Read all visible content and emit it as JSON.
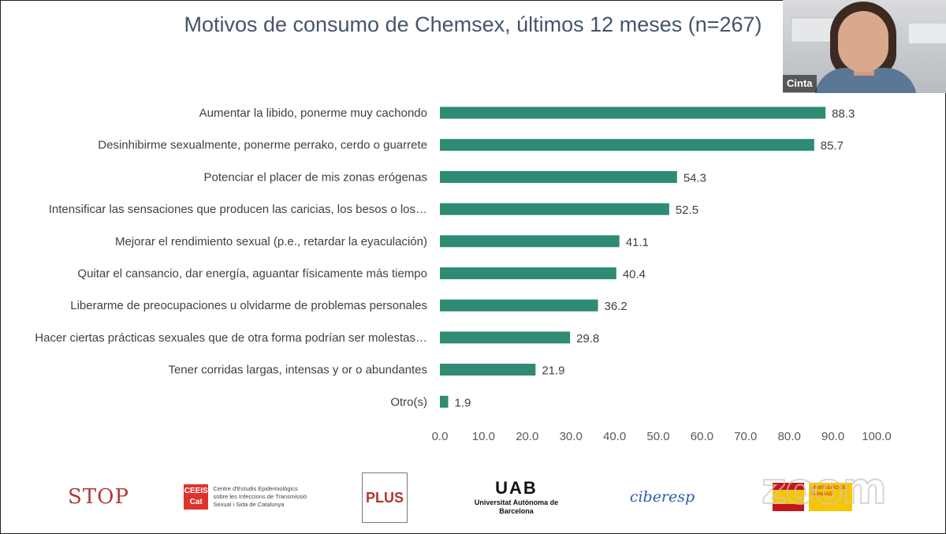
{
  "title": "Motivos de consumo de Chemsex, últimos 12 meses (n=267)",
  "video": {
    "participant_name": "Cinta"
  },
  "chart_data": {
    "type": "bar",
    "orientation": "horizontal",
    "title": "Motivos de consumo de Chemsex, últimos 12 meses (n=267)",
    "categories": [
      "Aumentar la libido, ponerme muy cachondo",
      "Desinhibirme sexualmente, ponerme perrako, cerdo o guarrete",
      "Potenciar el placer de mis zonas erógenas",
      "Intensificar las sensaciones que producen las caricias, los besos o los…",
      "Mejorar el rendimiento sexual (p.e., retardar la eyaculación)",
      "Quitar el cansancio, dar energía, aguantar físicamente más tiempo",
      "Liberarme de preocupaciones u olvidarme de problemas personales",
      "Hacer ciertas prácticas sexuales que de otra forma podrían ser molestas…",
      "Tener corridas largas, intensas y or o abundantes",
      "Otro(s)"
    ],
    "values": [
      88.3,
      85.7,
      54.3,
      52.5,
      41.1,
      40.4,
      36.2,
      29.8,
      21.9,
      1.9
    ],
    "value_labels": [
      "88.3",
      "85.7",
      "54.3",
      "52.5",
      "41.1",
      "40.4",
      "36.2",
      "29.8",
      "21.9",
      "1.9"
    ],
    "xlim": [
      0,
      100
    ],
    "xticks": [
      "0.0",
      "10.0",
      "20.0",
      "30.0",
      "40.0",
      "50.0",
      "60.0",
      "70.0",
      "80.0",
      "90.0",
      "100.0"
    ],
    "grid": false,
    "bar_color": "#2e8b74"
  },
  "logos": {
    "stop": "STOP",
    "ceeis_box": "CEEIS Cat",
    "ceeis_text": "Centre d'Estudis Epidemiològics sobre les Infeccions de Transmissió Sexual i Sida de Catalunya",
    "plus": "PLUS",
    "uab_mark": "UAB",
    "uab_name": "Universitat Autònoma de Barcelona",
    "ciber": "ciberesp",
    "ministry": "MINISTERIO DE SANIDAD",
    "watermark": "zoom"
  }
}
